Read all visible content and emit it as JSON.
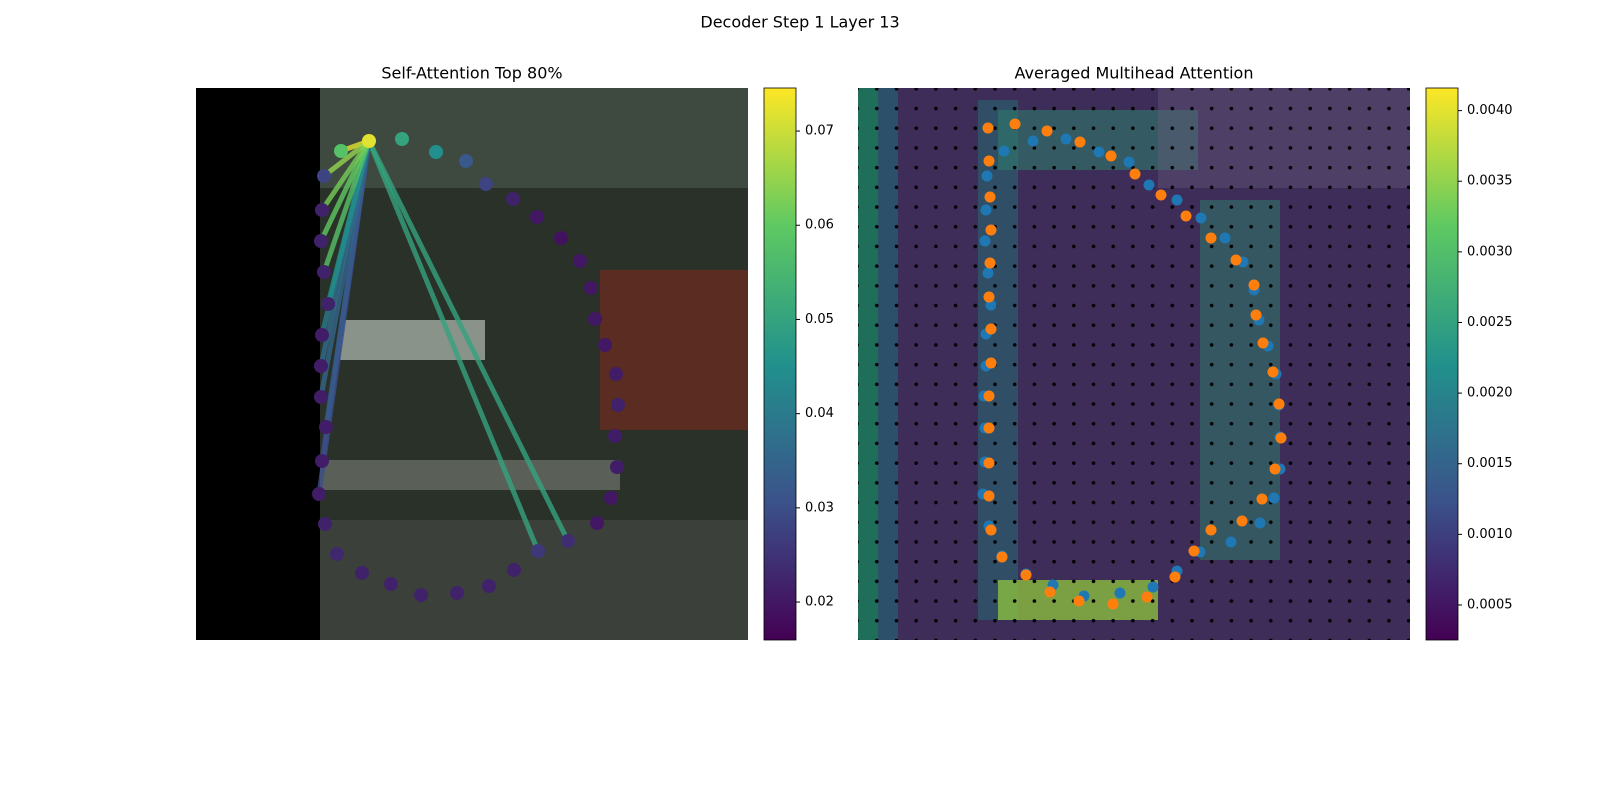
{
  "title": "Decoder Step 1 Layer 13",
  "chart_data": [
    {
      "type": "attention-points",
      "title": "Self-Attention Top 80%",
      "xlim": [
        0,
        552
      ],
      "ylim": [
        552,
        0
      ],
      "x": [
        173,
        145,
        206,
        240,
        270,
        290,
        317,
        341,
        365,
        384,
        395,
        399,
        409,
        420,
        422,
        419,
        421,
        415,
        401,
        372,
        342,
        318,
        293,
        261,
        225,
        195,
        166,
        141,
        129,
        123,
        126,
        130,
        125,
        125,
        126,
        132,
        128,
        125,
        126,
        128
      ],
      "y": [
        53,
        63,
        51,
        64,
        73,
        96,
        111,
        129,
        150,
        173,
        200,
        231,
        257,
        286,
        317,
        348,
        379,
        410,
        435,
        453,
        463,
        482,
        498,
        505,
        507,
        496,
        485,
        466,
        436,
        406,
        373,
        339,
        309,
        278,
        247,
        216,
        184,
        153,
        122,
        88
      ],
      "values": [
        0.072,
        0.058,
        0.05,
        0.045,
        0.032,
        0.028,
        0.022,
        0.02,
        0.019,
        0.02,
        0.02,
        0.02,
        0.02,
        0.021,
        0.022,
        0.021,
        0.021,
        0.02,
        0.02,
        0.024,
        0.026,
        0.022,
        0.022,
        0.022,
        0.022,
        0.022,
        0.022,
        0.023,
        0.022,
        0.021,
        0.021,
        0.021,
        0.021,
        0.021,
        0.021,
        0.022,
        0.022,
        0.022,
        0.022,
        0.028
      ],
      "link_values": [
        null,
        0.072,
        null,
        null,
        null,
        null,
        null,
        null,
        null,
        null,
        null,
        null,
        null,
        null,
        null,
        null,
        null,
        null,
        null,
        0.05,
        0.05,
        null,
        null,
        null,
        null,
        null,
        null,
        null,
        null,
        0.03,
        0.03,
        0.033,
        0.035,
        0.037,
        0.04,
        0.045,
        0.058,
        0.06,
        0.062,
        0.065
      ],
      "colorbar": {
        "lim": [
          0.01597,
          0.07457
        ],
        "ticks": [
          0.02,
          0.03,
          0.04,
          0.05,
          0.06,
          0.07
        ]
      }
    },
    {
      "type": "heatmap-points",
      "title": "Averaged Multihead Attention",
      "xlim": [
        0,
        552
      ],
      "ylim": [
        552,
        0
      ],
      "series": [
        {
          "color": "#1f77b4",
          "x": [
            146,
            175,
            208,
            241,
            271,
            291,
            319,
            343,
            367,
            385,
            396,
            401,
            410,
            418,
            421,
            422,
            422,
            416,
            402,
            373,
            342,
            319,
            295,
            262,
            226,
            195,
            168,
            144,
            131,
            125,
            127,
            127,
            126,
            128,
            128,
            133,
            130,
            127,
            128,
            129
          ],
          "y": [
            63,
            53,
            51,
            64,
            74,
            97,
            112,
            130,
            150,
            174,
            202,
            232,
            258,
            286,
            317,
            349,
            381,
            410,
            435,
            454,
            464,
            483,
            499,
            505,
            508,
            497,
            486,
            468,
            438,
            406,
            374,
            340,
            308,
            278,
            246,
            217,
            185,
            153,
            122,
            88
          ]
        },
        {
          "color": "#ff7f0e",
          "x": [
            130,
            157,
            189,
            222,
            253,
            277,
            303,
            328,
            353,
            378,
            396,
            398,
            405,
            415,
            421,
            423,
            417,
            404,
            384,
            353,
            336,
            317,
            289,
            255,
            221,
            192,
            168,
            144,
            133,
            131,
            131,
            131,
            131,
            133,
            133,
            131,
            132,
            133,
            132,
            131
          ],
          "y": [
            40,
            36,
            43,
            54,
            68,
            86,
            107,
            128,
            150,
            172,
            197,
            227,
            255,
            284,
            316,
            350,
            381,
            411,
            433,
            442,
            463,
            489,
            509,
            516,
            513,
            504,
            487,
            469,
            442,
            408,
            375,
            340,
            308,
            275,
            241,
            209,
            175,
            142,
            109,
            73
          ]
        }
      ],
      "colorbar": {
        "lim": [
          0.000252,
          0.00416
        ],
        "ticks": [
          0.0005,
          {
            "value": 0.001,
            "label": "0.0010"
          },
          0.0015,
          {
            "value": 0.002,
            "label": "0.0020"
          },
          0.0025,
          {
            "value": 0.003,
            "label": "0.0030"
          },
          0.0035,
          {
            "value": 0.004,
            "label": "0.0040"
          }
        ]
      }
    }
  ]
}
